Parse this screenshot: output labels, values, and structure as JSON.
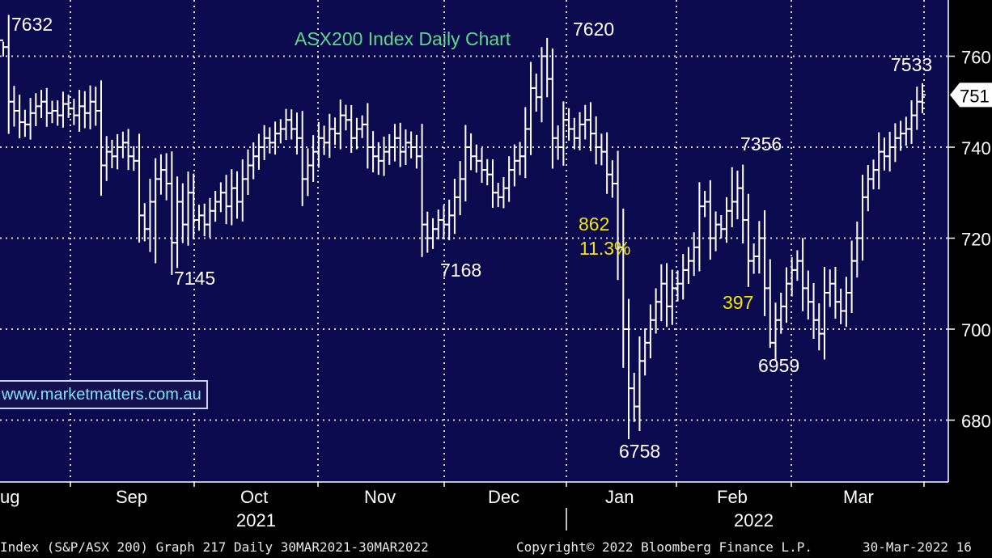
{
  "chart_data": {
    "type": "ohlc",
    "title": "ASX200 Index Daily Chart",
    "ylim": [
      6680,
      7700
    ],
    "yticks": [
      6800,
      7000,
      7200,
      7400,
      7600
    ],
    "ytick_labels": [
      "680",
      "700",
      "720",
      "740",
      "760"
    ],
    "last_price_label": "751",
    "grid": true,
    "month_labels": [
      "ug",
      "Sep",
      "Oct",
      "Nov",
      "Dec",
      "Jan",
      "Feb",
      "Mar"
    ],
    "year_labels": [
      "2021",
      "2022"
    ],
    "annotations": [
      {
        "text": "7632",
        "color": "#ffffff"
      },
      {
        "text": "7620",
        "color": "#ffffff"
      },
      {
        "text": "7145",
        "color": "#ffffff"
      },
      {
        "text": "7168",
        "color": "#ffffff"
      },
      {
        "text": "7356",
        "color": "#ffffff"
      },
      {
        "text": "7533",
        "color": "#ffffff"
      },
      {
        "text": "6959",
        "color": "#ffffff"
      },
      {
        "text": "6758",
        "color": "#ffffff"
      },
      {
        "text": "862",
        "color": "#f5e500"
      },
      {
        "text": "11.3%",
        "color": "#f5e500"
      },
      {
        "text": "397",
        "color": "#f5e500"
      }
    ],
    "series": [
      {
        "name": "",
        "close": [
          7620,
          7500,
          7480,
          7455,
          7450,
          7475,
          7490,
          7500,
          7475,
          7480,
          7470,
          7495,
          7485,
          7470,
          7490,
          7475,
          7500,
          7480,
          7360,
          7390,
          7380,
          7400,
          7410,
          7380,
          7370,
          7250,
          7220,
          7280,
          7330,
          7350,
          7320,
          7190,
          7280,
          7230,
          7300,
          7240,
          7250,
          7230,
          7260,
          7280,
          7300,
          7270,
          7310,
          7280,
          7330,
          7360,
          7380,
          7400,
          7420,
          7410,
          7430,
          7440,
          7460,
          7440,
          7420,
          7330,
          7360,
          7390,
          7420,
          7410,
          7440,
          7430,
          7470,
          7460,
          7420,
          7440,
          7450,
          7400,
          7380,
          7370,
          7390,
          7400,
          7420,
          7390,
          7410,
          7400,
          7380,
          7230,
          7200,
          7220,
          7240,
          7230,
          7250,
          7290,
          7330,
          7400,
          7380,
          7370,
          7350,
          7340,
          7300,
          7290,
          7310,
          7350,
          7370,
          7380,
          7440,
          7530,
          7510,
          7600,
          7550,
          7420,
          7400,
          7460,
          7440,
          7420,
          7450,
          7460,
          7430,
          7400,
          7390,
          7340,
          7320,
          7180,
          7000,
          6870,
          6830,
          6930,
          6970,
          7020,
          7060,
          7100,
          7050,
          7090,
          7100,
          7130,
          7150,
          7180,
          7270,
          7280,
          7200,
          7230,
          7220,
          7260,
          7280,
          7310,
          7240,
          7150,
          7160,
          7200,
          7090,
          6970,
          7020,
          7050,
          7100,
          7130,
          7150,
          7090,
          7060,
          7020,
          6990,
          7080,
          7100,
          7060,
          7040,
          7080,
          7150,
          7200,
          7290,
          7330,
          7350,
          7390,
          7380,
          7400,
          7420,
          7430,
          7440,
          7470,
          7500,
          7515
        ]
      }
    ]
  },
  "footer": {
    "left": "Index (S&P/ASX 200) Graph 217  Daily 30MAR2021-30MAR2022",
    "copyright": "Copyright© 2022 Bloomberg Finance L.P.",
    "date": "30-Mar-2022 16"
  },
  "website_label": "www.marketmatters.com.au",
  "colors": {
    "background": "#0c0a4f",
    "bars": "#ffffff",
    "grid": "#d8d8d8",
    "title": "#5bd98a",
    "highlight": "#f5e500",
    "website_text": "#7fe0ff"
  }
}
